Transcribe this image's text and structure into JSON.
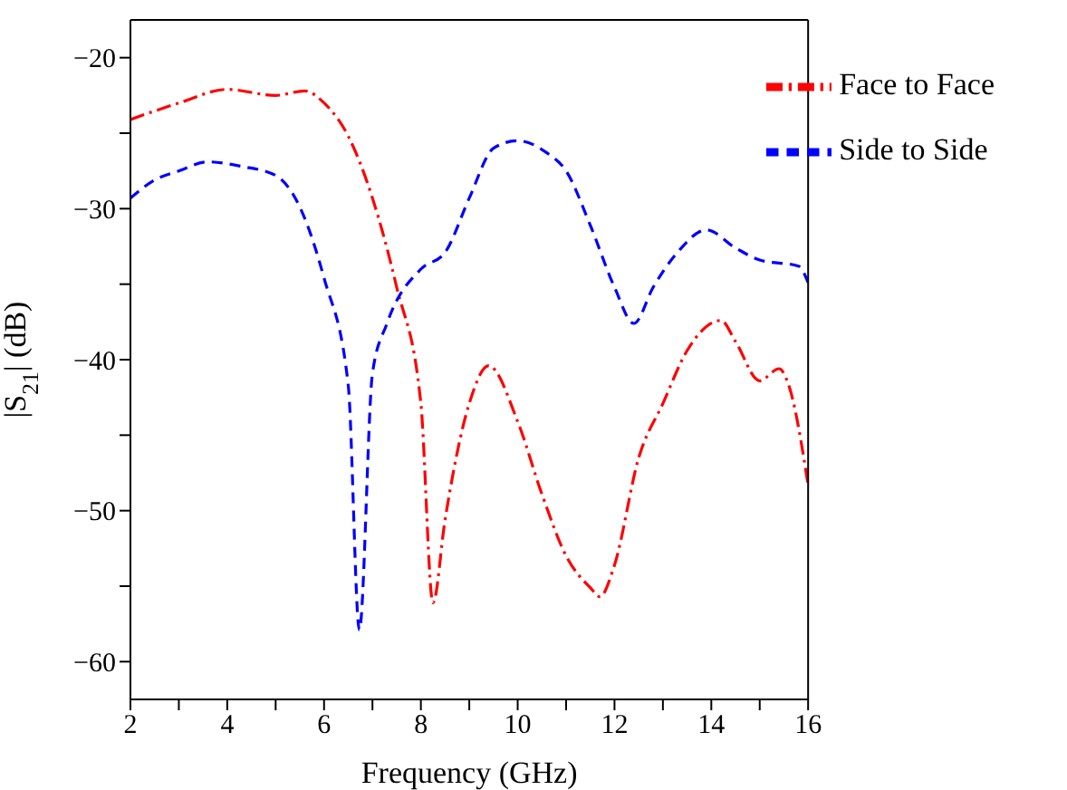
{
  "chart_data": {
    "type": "line",
    "xlabel": "Frequency (GHz)",
    "ylabel": "|S$_{21}$| (dB)",
    "xlim": [
      2,
      16
    ],
    "ylim": [
      -62.5,
      -17.5
    ],
    "xticks": [
      2,
      {
        "value": 3,
        "label": null
      },
      4,
      {
        "value": 5,
        "label": null
      },
      6,
      {
        "value": 7,
        "label": null
      },
      8,
      {
        "value": 9,
        "label": null
      },
      10,
      {
        "value": 11,
        "label": null
      },
      12,
      {
        "value": 13,
        "label": null
      },
      14,
      {
        "value": 15,
        "label": null
      },
      16
    ],
    "yticks": [
      -60,
      {
        "value": -55,
        "label": null
      },
      -50,
      {
        "value": -45,
        "label": null
      },
      -40,
      {
        "value": -35,
        "label": null
      },
      -30,
      {
        "value": -25,
        "label": null
      },
      -20
    ],
    "grid": false,
    "legend": "top right",
    "marker": "none",
    "series": [
      {
        "name": "Face to Face",
        "color": "#ff0000",
        "line_style": "dashdot",
        "x": [
          2,
          3,
          4,
          5,
          5.6,
          6,
          6.5,
          7,
          7.5,
          8,
          8.25,
          8.5,
          9,
          9.4,
          10,
          10.5,
          11,
          11.5,
          11.7,
          12,
          12.5,
          13,
          13.5,
          14.2,
          14.5,
          15,
          15.4,
          15.6,
          16
        ],
        "values": [
          -24.1,
          -23.0,
          -22.1,
          -22.5,
          -22.2,
          -23.0,
          -25.2,
          -29.3,
          -35.2,
          -42.9,
          -56.1,
          -50.6,
          -42.9,
          -40.4,
          -44.1,
          -48.9,
          -53.0,
          -55.1,
          -55.7,
          -53.6,
          -46.5,
          -42.9,
          -39.4,
          -37.4,
          -38.8,
          -41.4,
          -40.6,
          -41.7,
          -48.3
        ]
      },
      {
        "name": "Side to Side",
        "color": "#0000ff",
        "line_style": "dashed",
        "x": [
          2,
          2.5,
          3,
          3.6,
          4.3,
          5,
          5.5,
          6,
          6.5,
          6.73,
          7,
          7.3,
          8,
          8.5,
          9,
          9.5,
          10,
          10.6,
          11,
          11.5,
          12,
          12.4,
          12.8,
          13.3,
          13.9,
          14.5,
          15,
          15.8,
          16
        ],
        "values": [
          -29.3,
          -28.1,
          -27.5,
          -26.9,
          -27.2,
          -27.8,
          -29.9,
          -34.6,
          -41.7,
          -57.9,
          -40.9,
          -37.6,
          -34.0,
          -32.9,
          -29.3,
          -26.0,
          -25.5,
          -26.3,
          -27.5,
          -31.1,
          -35.2,
          -37.6,
          -35.2,
          -32.9,
          -31.4,
          -32.6,
          -33.4,
          -33.8,
          -34.9
        ]
      }
    ]
  }
}
